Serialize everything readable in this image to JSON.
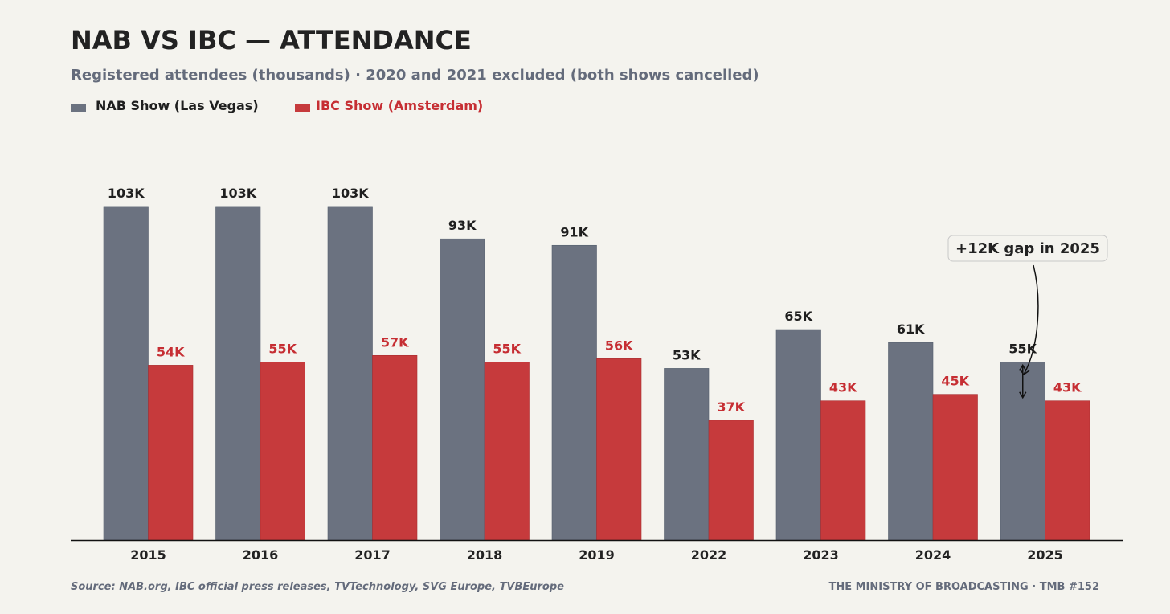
{
  "chart_data": {
    "type": "bar",
    "title": "NAB VS IBC — ATTENDANCE",
    "subtitle": "Registered attendees (thousands) · 2020 and 2021 excluded (both shows cancelled)",
    "categories": [
      "2015",
      "2016",
      "2017",
      "2018",
      "2019",
      "2022",
      "2023",
      "2024",
      "2025"
    ],
    "series": [
      {
        "name": "NAB Show (Las Vegas)",
        "color": "#6b7280",
        "label_color": "#1f1f1f",
        "values": [
          103,
          103,
          103,
          93,
          91,
          53,
          65,
          61,
          55
        ]
      },
      {
        "name": "IBC Show (Amsterdam)",
        "color": "#c63a3c",
        "label_color": "#c62e33",
        "values": [
          54,
          55,
          57,
          55,
          56,
          37,
          43,
          45,
          43
        ]
      }
    ],
    "value_suffix": "K",
    "ylim": [
      0,
      115
    ],
    "legend_position": "top-left",
    "grid": false,
    "annotation": {
      "text": "+12K gap in 2025",
      "category": "2025"
    },
    "source": "Source: NAB.org, IBC official press releases, TVTechnology, SVG Europe, TVBEurope",
    "credit": "THE MINISTRY OF BROADCASTING · TMB #152"
  }
}
